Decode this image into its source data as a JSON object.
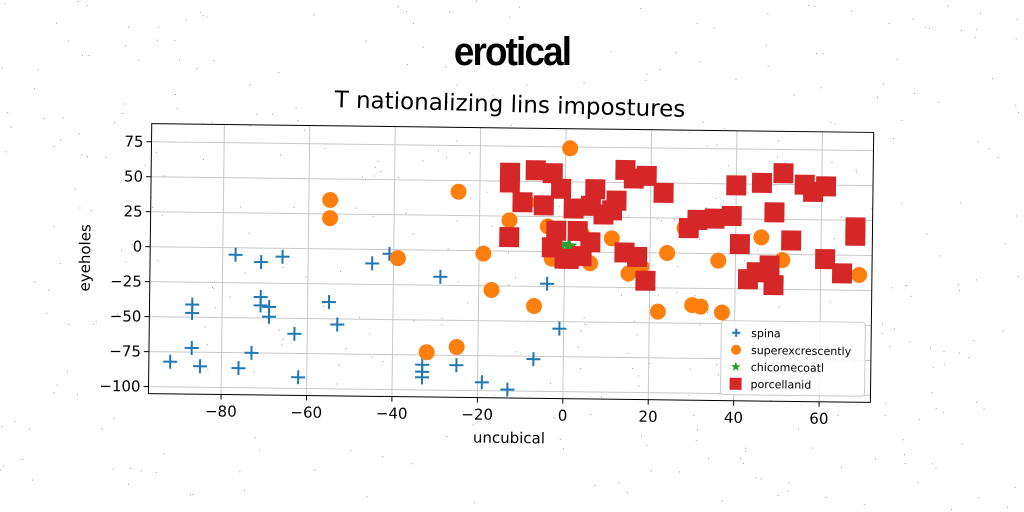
{
  "chart_data": {
    "type": "scatter",
    "suptitle": "erotical",
    "title": "T nationalizing lins impostures",
    "xlabel": "uncubical",
    "ylabel": "eyeholes",
    "xlim": [
      -97,
      72
    ],
    "ylim": [
      -105,
      88
    ],
    "xticks": [
      -80,
      -60,
      -40,
      -20,
      0,
      20,
      40,
      60
    ],
    "yticks": [
      75,
      50,
      25,
      0,
      -25,
      -50,
      -75,
      -100
    ],
    "grid": true,
    "legend_position": "lower-right",
    "series": [
      {
        "name": "spina",
        "marker": "plus",
        "color": "#1f77b4",
        "points": [
          [
            -77,
            -5
          ],
          [
            -71,
            -10
          ],
          [
            -66,
            -6
          ],
          [
            -87,
            -41
          ],
          [
            -87,
            -47
          ],
          [
            -71,
            -35
          ],
          [
            -71,
            -41
          ],
          [
            -69,
            -42
          ],
          [
            -69,
            -49
          ],
          [
            -63,
            -61
          ],
          [
            -87,
            -72
          ],
          [
            -73,
            -75
          ],
          [
            -92,
            -82
          ],
          [
            -85,
            -85
          ],
          [
            -76,
            -86
          ],
          [
            -62,
            -92
          ],
          [
            -55,
            -38
          ],
          [
            -53,
            -54
          ],
          [
            -45,
            -10
          ],
          [
            -41,
            -3
          ],
          [
            -29,
            -19
          ],
          [
            -33,
            -82
          ],
          [
            -33,
            -87
          ],
          [
            -33,
            -91
          ],
          [
            -25,
            -82
          ],
          [
            -19,
            -94
          ],
          [
            -13,
            -99
          ],
          [
            -7,
            -77
          ],
          [
            -4,
            -23
          ],
          [
            -1,
            -55
          ]
        ]
      },
      {
        "name": "superexcrescently",
        "marker": "circle",
        "color": "#ff7f0e",
        "points": [
          [
            -55,
            35
          ],
          [
            -55,
            22
          ],
          [
            -39,
            -6
          ],
          [
            -32,
            -73
          ],
          [
            -25,
            42
          ],
          [
            -25,
            -69
          ],
          [
            -19,
            -2
          ],
          [
            -17,
            -28
          ],
          [
            -13,
            22
          ],
          [
            -9,
            35
          ],
          [
            -7,
            -39
          ],
          [
            -4,
            18
          ],
          [
            -3,
            -5
          ],
          [
            1,
            74
          ],
          [
            4,
            13
          ],
          [
            6,
            -8
          ],
          [
            11,
            10
          ],
          [
            15,
            -15
          ],
          [
            18,
            -10
          ],
          [
            22,
            -42
          ],
          [
            24,
            0
          ],
          [
            28,
            18
          ],
          [
            30,
            -37
          ],
          [
            32,
            -38
          ],
          [
            36,
            -5
          ],
          [
            37,
            -42
          ],
          [
            46,
            12
          ],
          [
            51,
            -4
          ],
          [
            69,
            -14
          ]
        ]
      },
      {
        "name": "chicomecoatl",
        "marker": "star",
        "color": "#2ca02c",
        "points": [
          [
            -3,
            3
          ],
          [
            -1,
            5
          ],
          [
            1,
            4
          ]
        ]
      },
      {
        "name": "porcellanid",
        "marker": "square",
        "color": "#d62728",
        "points": [
          [
            -13,
            56
          ],
          [
            -13,
            49
          ],
          [
            -7,
            58
          ],
          [
            -3,
            56
          ],
          [
            -10,
            35
          ],
          [
            -5,
            33
          ],
          [
            -1,
            45
          ],
          [
            2,
            31
          ],
          [
            6,
            33
          ],
          [
            7,
            45
          ],
          [
            9,
            27
          ],
          [
            11,
            30
          ],
          [
            12,
            37
          ],
          [
            14,
            59
          ],
          [
            16,
            53
          ],
          [
            19,
            55
          ],
          [
            23,
            43
          ],
          [
            -13,
            10
          ],
          [
            -2,
            15
          ],
          [
            3,
            15
          ],
          [
            6,
            7
          ],
          [
            1,
            -5
          ],
          [
            4,
            -3
          ],
          [
            14,
            0
          ],
          [
            17,
            -3
          ],
          [
            19,
            -20
          ],
          [
            29,
            18
          ],
          [
            31,
            24
          ],
          [
            35,
            25
          ],
          [
            39,
            27
          ],
          [
            40,
            49
          ],
          [
            41,
            7
          ],
          [
            43,
            -18
          ],
          [
            45,
            -13
          ],
          [
            46,
            51
          ],
          [
            48,
            -8
          ],
          [
            49,
            -22
          ],
          [
            51,
            58
          ],
          [
            49,
            30
          ],
          [
            53,
            10
          ],
          [
            56,
            50
          ],
          [
            58,
            45
          ],
          [
            61,
            49
          ],
          [
            61,
            -3
          ],
          [
            65,
            -13
          ],
          [
            68,
            14
          ],
          [
            68,
            20
          ],
          [
            -3,
            3
          ],
          [
            0,
            -5
          ]
        ]
      }
    ]
  }
}
